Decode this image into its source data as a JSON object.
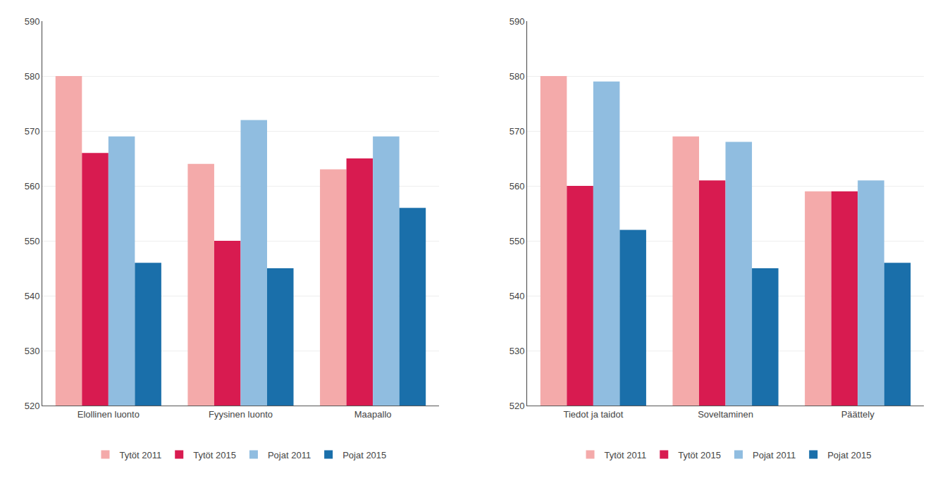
{
  "chart_data": [
    {
      "type": "bar",
      "categories": [
        "Elollinen luonto",
        "Fyysinen luonto",
        "Maapallo"
      ],
      "series": [
        {
          "name": "Tytöt 2011",
          "color": "#f4aaaa",
          "values": [
            580,
            564,
            563
          ]
        },
        {
          "name": "Tytöt 2015",
          "color": "#d81b50",
          "values": [
            566,
            550,
            565
          ]
        },
        {
          "name": "Pojat 2011",
          "color": "#90bde0",
          "values": [
            569,
            572,
            569
          ]
        },
        {
          "name": "Pojat 2015",
          "color": "#1a6faa",
          "values": [
            546,
            545,
            556
          ]
        }
      ],
      "ylim": [
        520,
        590
      ],
      "yticks": [
        520,
        530,
        540,
        550,
        560,
        570,
        580,
        590
      ],
      "grid": true,
      "legend": "bottom"
    },
    {
      "type": "bar",
      "categories": [
        "Tiedot ja taidot",
        "Soveltaminen",
        "Päättely"
      ],
      "series": [
        {
          "name": "Tytöt 2011",
          "color": "#f4aaaa",
          "values": [
            580,
            569,
            559
          ]
        },
        {
          "name": "Tytöt 2015",
          "color": "#d81b50",
          "values": [
            560,
            561,
            559
          ]
        },
        {
          "name": "Pojat 2011",
          "color": "#90bde0",
          "values": [
            579,
            568,
            561
          ]
        },
        {
          "name": "Pojat 2015",
          "color": "#1a6faa",
          "values": [
            552,
            545,
            546
          ]
        }
      ],
      "ylim": [
        520,
        590
      ],
      "yticks": [
        520,
        530,
        540,
        550,
        560,
        570,
        580,
        590
      ],
      "grid": true,
      "legend": "bottom"
    }
  ]
}
